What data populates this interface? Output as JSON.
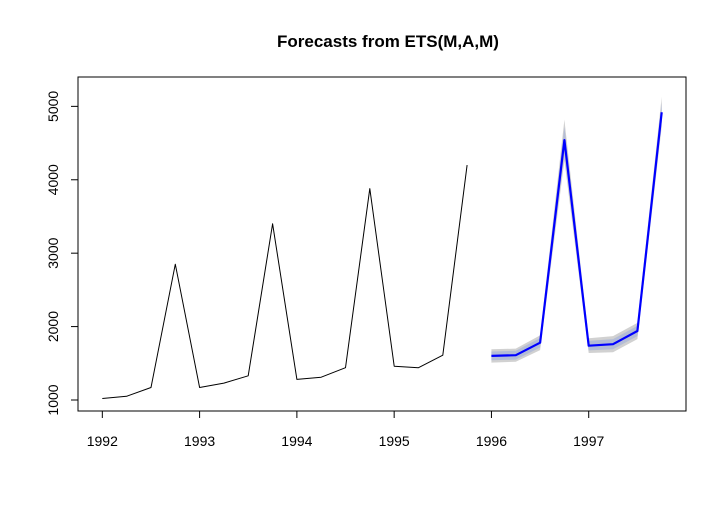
{
  "chart_data": {
    "type": "line",
    "title": "Forecasts from ETS(M,A,M)",
    "xlabel": "",
    "ylabel": "",
    "xlim": [
      1991.75,
      1998.0
    ],
    "ylim": [
      850,
      5400
    ],
    "x_ticks": [
      1992,
      1993,
      1994,
      1995,
      1996,
      1997
    ],
    "x_tick_labels": [
      "1992",
      "1993",
      "1994",
      "1995",
      "1996",
      "1997"
    ],
    "y_ticks": [
      1000,
      2000,
      3000,
      4000,
      5000
    ],
    "y_tick_labels": [
      "1000",
      "2000",
      "3000",
      "4000",
      "5000"
    ],
    "grid": false,
    "legend": "none",
    "series": [
      {
        "role": "observed",
        "color": "#000000",
        "x": [
          1992.0,
          1992.25,
          1992.5,
          1992.75,
          1993.0,
          1993.25,
          1993.5,
          1993.75,
          1994.0,
          1994.25,
          1994.5,
          1994.75,
          1995.0,
          1995.25,
          1995.5,
          1995.75
        ],
        "values": [
          1020,
          1050,
          1170,
          2850,
          1170,
          1230,
          1330,
          3400,
          1280,
          1310,
          1440,
          3880,
          1460,
          1440,
          1610,
          4200
        ]
      },
      {
        "role": "forecast",
        "color": "#0000ff",
        "x": [
          1996.0,
          1996.25,
          1996.5,
          1996.75,
          1997.0,
          1997.25,
          1997.5,
          1997.75
        ],
        "values": [
          1600,
          1610,
          1780,
          4540,
          1740,
          1760,
          1940,
          4920
        ]
      }
    ],
    "intervals": [
      {
        "level": 95,
        "color": "#d1d1d1",
        "x": [
          1996.0,
          1996.25,
          1996.5,
          1996.75,
          1997.0,
          1997.25,
          1997.5,
          1997.75
        ],
        "lower": [
          1510,
          1520,
          1680,
          4260,
          1640,
          1650,
          1830,
          4720
        ],
        "upper": [
          1690,
          1700,
          1880,
          4820,
          1840,
          1870,
          2050,
          5130
        ]
      },
      {
        "level": 80,
        "color": "#b3bcd6",
        "x": [
          1996.0,
          1996.25,
          1996.5,
          1996.75,
          1997.0,
          1997.25,
          1997.5,
          1997.75
        ],
        "lower": [
          1540,
          1550,
          1715,
          4360,
          1675,
          1690,
          1870,
          4790
        ],
        "upper": [
          1660,
          1670,
          1845,
          4720,
          1805,
          1830,
          2010,
          5050
        ]
      }
    ]
  }
}
